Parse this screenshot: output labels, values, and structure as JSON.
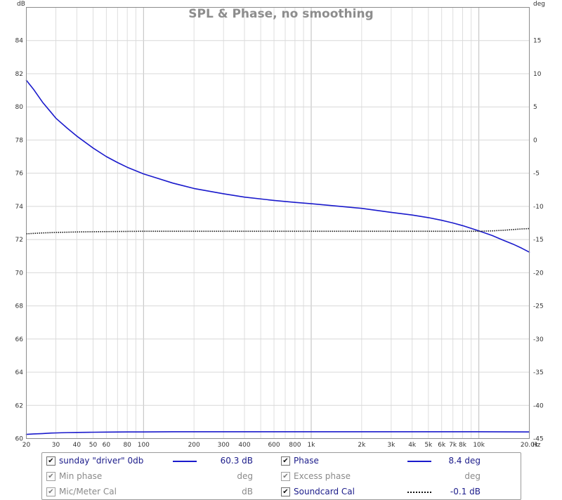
{
  "chart_data": {
    "type": "line",
    "title": "SPL & Phase, no smoothing",
    "xscale": "log",
    "xlim": [
      20,
      20000
    ],
    "x_axis_unit": "Hz",
    "x_ticks": [
      20,
      30,
      40,
      50,
      60,
      80,
      100,
      200,
      300,
      400,
      600,
      800,
      1000,
      2000,
      3000,
      4000,
      5000,
      6000,
      7000,
      8000,
      10000,
      20000
    ],
    "x_tick_labels": [
      "20",
      "30",
      "40",
      "50",
      "60",
      "80",
      "100",
      "200",
      "300",
      "400",
      "600",
      "800",
      "1k",
      "2k",
      "3k",
      "4k",
      "5k",
      "6k",
      "7k",
      "8k",
      "10k",
      "20.0k"
    ],
    "ylabel_left": "dB",
    "ylim_left": [
      60,
      86
    ],
    "y_ticks_left": [
      60,
      62,
      64,
      66,
      68,
      70,
      72,
      74,
      76,
      78,
      80,
      82,
      84
    ],
    "ylabel_right": "deg",
    "ylim_right": [
      -45,
      20
    ],
    "y_ticks_right": [
      -45,
      -40,
      -35,
      -30,
      -25,
      -20,
      -15,
      -10,
      -5,
      0,
      5,
      10,
      15
    ],
    "grid": true,
    "series": [
      {
        "name": "sunday \"driver\" 0db",
        "axis": "left",
        "color": "#1a1acc",
        "style": "solid",
        "x": [
          20,
          22,
          25,
          28,
          30,
          35,
          40,
          50,
          60,
          80,
          100,
          150,
          200,
          300,
          400,
          600,
          800,
          1000,
          2000,
          3000,
          4000,
          5000,
          6000,
          8000,
          10000,
          20000
        ],
        "y": [
          60.25,
          60.28,
          60.3,
          60.33,
          60.34,
          60.36,
          60.37,
          60.38,
          60.39,
          60.4,
          60.4,
          60.41,
          60.41,
          60.41,
          60.41,
          60.41,
          60.41,
          60.41,
          60.41,
          60.41,
          60.41,
          60.41,
          60.41,
          60.41,
          60.41,
          60.4
        ]
      },
      {
        "name": "Phase",
        "axis": "right",
        "color": "#1a1acc",
        "style": "solid",
        "x": [
          20,
          22,
          25,
          28,
          30,
          35,
          40,
          50,
          60,
          70,
          80,
          100,
          150,
          200,
          300,
          400,
          600,
          800,
          1000,
          1500,
          2000,
          3000,
          4000,
          5000,
          6000,
          7000,
          8000,
          10000,
          12000,
          14000,
          16000,
          18000,
          20000
        ],
        "y": [
          9.0,
          7.7,
          5.7,
          4.2,
          3.3,
          1.8,
          0.6,
          -1.2,
          -2.5,
          -3.4,
          -4.1,
          -5.1,
          -6.5,
          -7.3,
          -8.1,
          -8.6,
          -9.1,
          -9.4,
          -9.6,
          -10.0,
          -10.3,
          -10.9,
          -11.3,
          -11.7,
          -12.1,
          -12.5,
          -12.9,
          -13.7,
          -14.4,
          -15.1,
          -15.7,
          -16.3,
          -16.9
        ]
      },
      {
        "name": "Soundcard Cal",
        "axis": "left",
        "color": "#111111",
        "style": "dotted",
        "x": [
          20,
          25,
          30,
          40,
          50,
          60,
          80,
          100,
          200,
          500,
          1000,
          2000,
          5000,
          10000,
          12000,
          14000,
          16000,
          18000,
          20000
        ],
        "y": [
          72.35,
          72.4,
          72.43,
          72.46,
          72.47,
          72.48,
          72.49,
          72.5,
          72.5,
          72.5,
          72.5,
          72.5,
          72.5,
          72.5,
          72.52,
          72.56,
          72.6,
          72.64,
          72.66
        ]
      }
    ]
  },
  "legend": {
    "rows": [
      {
        "left": {
          "checked": true,
          "enabled": true,
          "label": "sunday \"driver\" 0db",
          "swatch": "solid",
          "value": "60.3 dB"
        },
        "right": {
          "checked": true,
          "enabled": true,
          "label": "Phase",
          "swatch": "solid",
          "value": "8.4 deg"
        }
      },
      {
        "left": {
          "checked": true,
          "enabled": false,
          "label": "Min phase",
          "swatch": "none",
          "value": "deg"
        },
        "right": {
          "checked": true,
          "enabled": false,
          "label": "Excess phase",
          "swatch": "none",
          "value": "deg"
        }
      },
      {
        "left": {
          "checked": true,
          "enabled": false,
          "label": "Mic/Meter Cal",
          "swatch": "none",
          "value": "dB"
        },
        "right": {
          "checked": true,
          "enabled": true,
          "label": "Soundcard Cal",
          "swatch": "dotted",
          "value": "-0.1 dB"
        }
      }
    ],
    "check_glyph": "✔",
    "line_color": "#1a1acc",
    "dotted_color": "#111111"
  }
}
